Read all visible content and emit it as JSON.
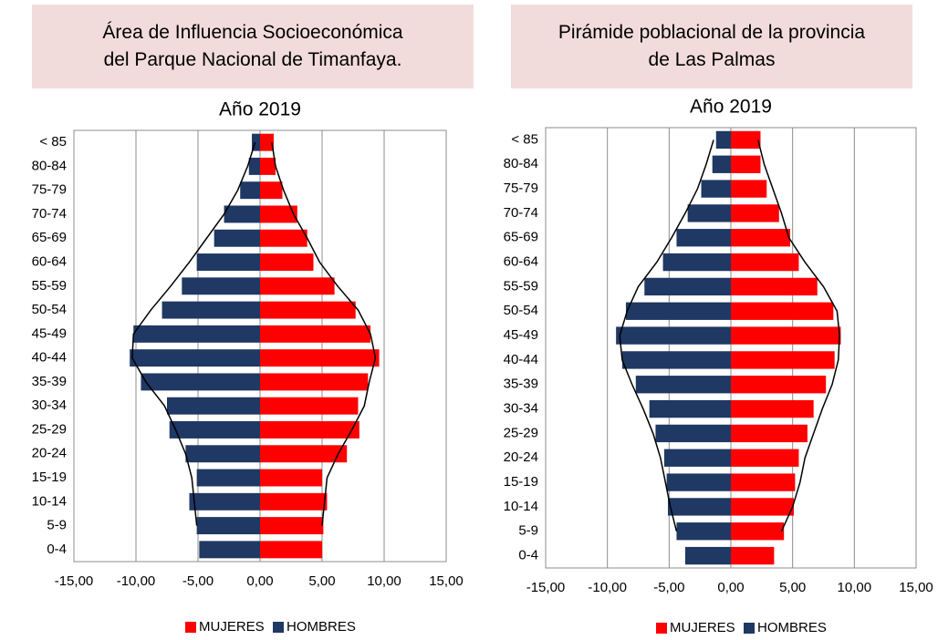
{
  "chart_data": [
    {
      "type": "bar",
      "title": "Área de Influencia Socioeconómica del Parque Nacional de Timanfaya.",
      "subtitle": "Año 2019",
      "categories": [
        "< 85",
        "80-84",
        "75-79",
        "70-74",
        "65-69",
        "60-64",
        "55-59",
        "50-54",
        "45-49",
        "40-44",
        "35-39",
        "30-34",
        "25-29",
        "20-24",
        "15-19",
        "10-14",
        "5-9",
        "0-4"
      ],
      "series": [
        {
          "name": "MUJERES",
          "color": "#ff0000",
          "values": [
            1.1,
            1.25,
            1.8,
            3.0,
            3.8,
            4.3,
            6.0,
            7.7,
            8.9,
            9.6,
            8.7,
            7.9,
            8.0,
            7.0,
            5.0,
            5.4,
            5.1,
            5.0
          ]
        },
        {
          "name": "HOMBRES",
          "color": "#1f3864",
          "values": [
            -0.66,
            -0.9,
            -1.6,
            -2.9,
            -3.7,
            -5.1,
            -6.3,
            -7.9,
            -10.2,
            -10.5,
            -9.6,
            -7.5,
            -7.3,
            -6.0,
            -5.1,
            -5.7,
            -5.1,
            -4.9
          ]
        }
      ],
      "outline": {
        "color": "#000000",
        "right": [
          0.95,
          1.25,
          1.9,
          2.7,
          3.8,
          4.8,
          6.25,
          7.9,
          8.9,
          9.3,
          8.8,
          8.4,
          7.4,
          6.3,
          5.4,
          5.2,
          5.0,
          null
        ],
        "left": [
          -0.4,
          -1.0,
          -1.8,
          -2.9,
          -4.3,
          -5.7,
          -7.2,
          -8.8,
          -10.2,
          -10.3,
          -9.2,
          -7.7,
          -6.8,
          -6.0,
          -5.5,
          -5.3,
          -5.1,
          null
        ]
      },
      "xlim": [
        -15,
        15
      ],
      "xticks": [
        {
          "value": -15,
          "label": "-15,00"
        },
        {
          "value": -10,
          "label": "-10,00"
        },
        {
          "value": -5,
          "label": "-5,00"
        },
        {
          "value": 0,
          "label": "0,00"
        },
        {
          "value": 5,
          "label": "5,00"
        },
        {
          "value": 10,
          "label": "10,00"
        },
        {
          "value": 15,
          "label": "15,00"
        }
      ],
      "grid": true
    },
    {
      "type": "bar",
      "title": "Pirámide poblacional de la provincia de Las Palmas",
      "subtitle": "Año 2019",
      "categories": [
        "< 85",
        "80-84",
        "75-79",
        "70-74",
        "65-69",
        "60-64",
        "55-59",
        "50-54",
        "45-49",
        "40-44",
        "35-39",
        "30-34",
        "25-29",
        "20-24",
        "15-19",
        "10-14",
        "5-9",
        "0-4"
      ],
      "series": [
        {
          "name": "MUJERES",
          "color": "#ff0000",
          "values": [
            2.4,
            2.4,
            2.9,
            3.9,
            4.8,
            5.5,
            7.0,
            8.3,
            8.9,
            8.4,
            7.7,
            6.7,
            6.2,
            5.5,
            5.2,
            5.1,
            4.3,
            3.5
          ]
        },
        {
          "name": "HOMBRES",
          "color": "#1f3864",
          "values": [
            -1.2,
            -1.5,
            -2.4,
            -3.5,
            -4.4,
            -5.5,
            -7.0,
            -8.5,
            -9.3,
            -8.8,
            -7.7,
            -6.6,
            -6.1,
            -5.4,
            -5.2,
            -5.1,
            -4.4,
            -3.7
          ]
        }
      ],
      "outline": {
        "color": "#000000",
        "right": [
          2.2,
          2.7,
          3.4,
          4.1,
          4.7,
          6.0,
          7.5,
          8.6,
          8.8,
          8.7,
          8.2,
          7.4,
          6.7,
          6.0,
          5.6,
          5.0,
          4.1,
          null
        ],
        "left": [
          -1.4,
          -2.0,
          -2.7,
          -3.7,
          -4.8,
          -6.0,
          -7.5,
          -8.4,
          -9.0,
          -8.8,
          -8.0,
          -7.1,
          -6.3,
          -5.7,
          -5.3,
          -4.9,
          -4.4,
          null
        ]
      },
      "xlim": [
        -15,
        15
      ],
      "xticks": [
        {
          "value": -15,
          "label": "-15,00"
        },
        {
          "value": -10,
          "label": "-10,00"
        },
        {
          "value": -5,
          "label": "-5,00"
        },
        {
          "value": 0,
          "label": "0,00"
        },
        {
          "value": 5,
          "label": "5,00"
        },
        {
          "value": 10,
          "label": "10,00"
        },
        {
          "value": 15,
          "label": "15,00"
        }
      ],
      "grid": true
    }
  ]
}
